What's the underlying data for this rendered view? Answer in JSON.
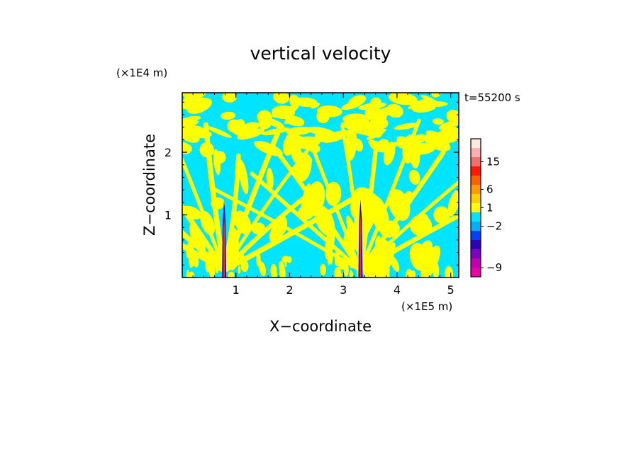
{
  "chart_data": {
    "type": "heatmap",
    "title": "vertical velocity",
    "xlabel": "X−coordinate",
    "ylabel": "Z−coordinate",
    "x_unit": "(×1E5 m)",
    "y_unit": "(×1E4 m)",
    "time_label": "t=55200 s",
    "xlim": [
      0,
      5.15
    ],
    "ylim": [
      0,
      2.95
    ],
    "x_ticks": [
      "1",
      "2",
      "3",
      "4",
      "5"
    ],
    "x_tick_values": [
      1,
      2,
      3,
      4,
      5
    ],
    "y_ticks": [
      "1",
      "2"
    ],
    "y_tick_values": [
      1,
      2
    ],
    "field_colors": {
      "negative": "#00e5ff",
      "positive": "#ffff00",
      "strong_updraft": "#e63a1a",
      "strong_downdraft": "#2a00c8"
    },
    "updraft_columns_x": [
      0.78,
      3.32
    ],
    "colorbar": {
      "levels": [
        {
          "color": "#e800a8"
        },
        {
          "color": "#c000b0"
        },
        {
          "color": "#8000c0"
        },
        {
          "color": "#3000b8"
        },
        {
          "color": "#0040ff"
        },
        {
          "color": "#00b0ff"
        },
        {
          "color": "#00e5ff"
        },
        {
          "color": "#ffff00"
        },
        {
          "color": "#ffd000"
        },
        {
          "color": "#ff9a00"
        },
        {
          "color": "#ff6000"
        },
        {
          "color": "#ff1a00"
        },
        {
          "color": "#f07070"
        },
        {
          "color": "#f8b0b0"
        },
        {
          "color": "#fde8e0"
        }
      ],
      "labels": [
        {
          "text": "−9",
          "level": 1
        },
        {
          "text": "−2",
          "level": 5.5
        },
        {
          "text": "1",
          "level": 7.5
        },
        {
          "text": "6",
          "level": 9.5
        },
        {
          "text": "15",
          "level": 12.5
        }
      ]
    }
  }
}
